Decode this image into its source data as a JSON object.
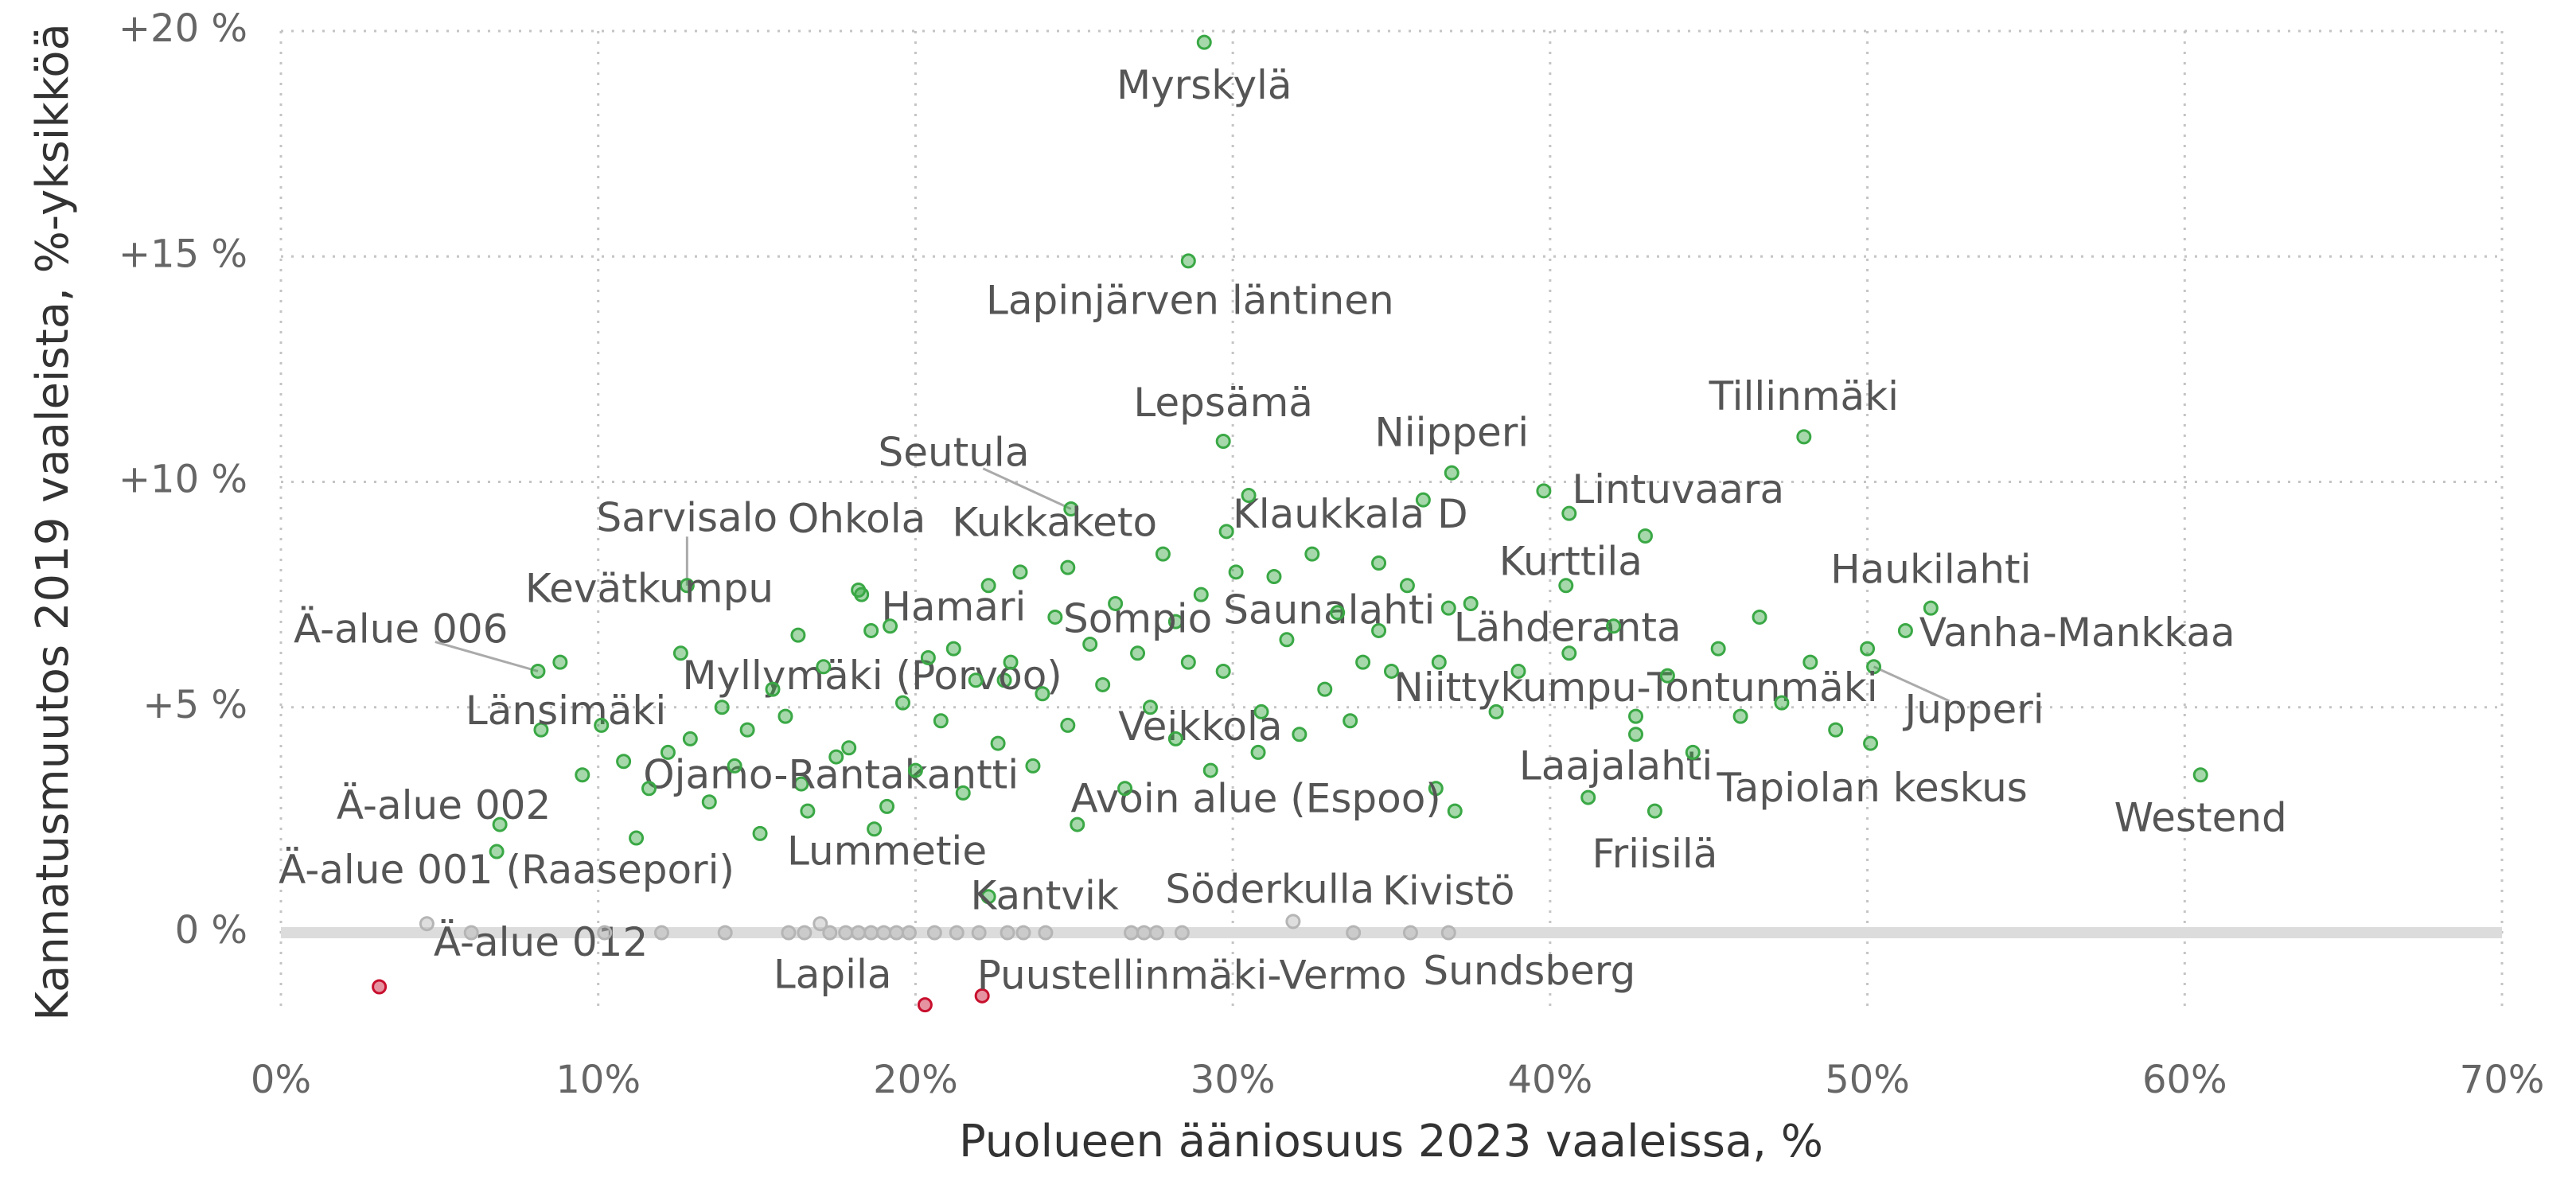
{
  "chart_data": {
    "type": "scatter",
    "xlabel": "Puolueen ääniosuus 2023 vaaleissa, %",
    "ylabel": "Kannatusmuutos 2019 vaaleista, %-yksikköä",
    "xlim": [
      0,
      70
    ],
    "ylim": [
      -1.8,
      20
    ],
    "xticks": [
      {
        "value": 0,
        "label": "0%"
      },
      {
        "value": 10,
        "label": "10%"
      },
      {
        "value": 20,
        "label": "20%"
      },
      {
        "value": 30,
        "label": "30%"
      },
      {
        "value": 40,
        "label": "40%"
      },
      {
        "value": 50,
        "label": "50%"
      },
      {
        "value": 60,
        "label": "60%"
      },
      {
        "value": 70,
        "label": "70%"
      }
    ],
    "yticks": [
      {
        "value": 0,
        "label": "0 %"
      },
      {
        "value": 5,
        "label": "+5 %"
      },
      {
        "value": 10,
        "label": "+10 %"
      },
      {
        "value": 15,
        "label": "+15 %"
      },
      {
        "value": 20,
        "label": "+20 %"
      }
    ],
    "grid": true,
    "series": [
      {
        "color": "#3aa845",
        "x": [
          29.1,
          28.6,
          29.7,
          24.9,
          36.9,
          48.0,
          40.6,
          29.8,
          24.8,
          18.2,
          12.8,
          12.6,
          8.1,
          18.6,
          28.2,
          34.6,
          36.8,
          40.6,
          52.0,
          51.2,
          50.2,
          22.8,
          42.7,
          8.2,
          30.8,
          42.7,
          50.1,
          60.5,
          16.4,
          6.9,
          36.4,
          43.3,
          19.1,
          6.8,
          22.3
        ],
        "y": [
          19.75,
          14.9,
          10.9,
          9.4,
          10.2,
          11.0,
          9.3,
          8.9,
          8.1,
          7.6,
          7.7,
          6.2,
          5.8,
          6.7,
          6.9,
          6.7,
          7.2,
          6.2,
          7.2,
          6.7,
          5.9,
          5.6,
          4.8,
          4.5,
          4.0,
          4.4,
          4.2,
          3.5,
          3.3,
          2.4,
          3.2,
          2.7,
          2.8,
          1.8,
          0.8
        ],
        "labels": [
          "Myrskylä",
          "Lapinjärven läntinen",
          "Lepsämä",
          "Seutula",
          "Niipperi",
          "Tillinmäki",
          "Lintuvaara",
          "Klaukkala D",
          "Kukkaketo",
          "Ohkola",
          "Sarvisalo",
          "Kevätkumpu",
          "Ä-alue 006",
          "Hamari",
          "Sompio",
          "Saunalahti",
          "Kurttila",
          "Lähderanta",
          "Haukilahti",
          "Vanha-Mankkaa",
          "Jupperi",
          "Myllymäki (Porvoo)",
          "Niittykumpu-Tontunmäki",
          "Länsimäki",
          "Veikkola",
          "Laajalahti",
          "Tapiolan keskus",
          "Westend",
          "Ojamo-Rantakantti",
          "Ä-alue 002",
          "Avoin alue (Espoo)",
          "Friisilä",
          "Lummetie",
          "Ä-alue 001 (Raasepori)",
          "Kantvik"
        ]
      },
      {
        "color": "#3aa845",
        "x": [
          8.8,
          9.5,
          10.1,
          10.8,
          11.2,
          11.6,
          12.2,
          12.9,
          13.5,
          13.9,
          14.3,
          14.7,
          15.1,
          15.5,
          15.9,
          16.3,
          16.6,
          17.1,
          17.5,
          17.9,
          18.3,
          18.7,
          19.2,
          19.6,
          20.0,
          20.4,
          20.8,
          21.2,
          21.5,
          21.9,
          22.3,
          22.6,
          23.0,
          23.3,
          23.7,
          24.0,
          24.4,
          24.8,
          25.1,
          25.5,
          25.9,
          26.3,
          26.6,
          27.0,
          27.4,
          27.8,
          28.2,
          28.6,
          29.0,
          29.3,
          29.7,
          30.1,
          30.5,
          30.9,
          31.3,
          31.7,
          32.1,
          32.5,
          32.9,
          33.3,
          33.7,
          34.1,
          34.6,
          35.0,
          35.5,
          36.0,
          36.5,
          37.0,
          37.5,
          38.3,
          39.0,
          39.8,
          40.5,
          41.2,
          42.0,
          43.0,
          43.7,
          44.5,
          45.3,
          46.0,
          46.6,
          47.3,
          48.2,
          49.0,
          50.0
        ],
        "y": [
          6.0,
          3.5,
          4.6,
          3.8,
          2.1,
          3.2,
          4.0,
          4.3,
          2.9,
          5.0,
          3.7,
          4.5,
          2.2,
          5.4,
          4.8,
          6.6,
          2.7,
          5.9,
          3.9,
          4.1,
          7.5,
          2.3,
          6.8,
          5.1,
          3.6,
          6.1,
          4.7,
          6.3,
          3.1,
          5.6,
          7.7,
          4.2,
          6.0,
          8.0,
          3.7,
          5.3,
          7.0,
          4.6,
          2.4,
          6.4,
          5.5,
          7.3,
          3.2,
          6.2,
          5.0,
          8.4,
          4.3,
          6.0,
          7.5,
          3.6,
          5.8,
          8.0,
          9.7,
          4.9,
          7.9,
          6.5,
          4.4,
          8.4,
          5.4,
          7.1,
          4.7,
          6.0,
          8.2,
          5.8,
          7.7,
          9.6,
          6.0,
          2.7,
          7.3,
          4.9,
          5.8,
          9.8,
          7.7,
          3.0,
          6.8,
          8.8,
          5.7,
          4.0,
          6.3,
          4.8,
          7.0,
          5.1,
          6.0,
          4.5,
          6.3
        ]
      },
      {
        "color": "#b5b5b5",
        "x": [
          31.9,
          36.8,
          4.6,
          35.6
        ],
        "y": [
          0.25,
          0,
          0.2,
          0
        ],
        "labels": [
          "Söderkulla",
          "Kivistö",
          "Ä-alue 012",
          "Sundsberg"
        ]
      },
      {
        "color": "#b5b5b5",
        "x": [
          6.0,
          10.2,
          12.0,
          14.0,
          16.0,
          16.5,
          17.0,
          17.3,
          17.8,
          18.2,
          18.6,
          19.0,
          19.4,
          19.8,
          20.6,
          21.3,
          22.0,
          22.9,
          23.4,
          24.1,
          26.8,
          27.2,
          27.6,
          28.4,
          33.8
        ],
        "y": [
          0,
          0,
          0,
          0,
          0,
          0,
          0.2,
          0,
          0,
          0,
          0,
          0,
          0,
          0,
          0,
          0,
          0,
          0,
          0,
          0,
          0,
          0,
          0,
          0,
          0
        ]
      },
      {
        "color": "#c8102e",
        "x": [
          20.3,
          22.1
        ],
        "y": [
          -1.6,
          -1.4
        ],
        "labels": [
          "Lapila",
          "Puustellinmäki-Vermo"
        ]
      },
      {
        "color": "#c8102e",
        "x": [
          3.1
        ],
        "y": [
          -1.2
        ]
      }
    ]
  }
}
